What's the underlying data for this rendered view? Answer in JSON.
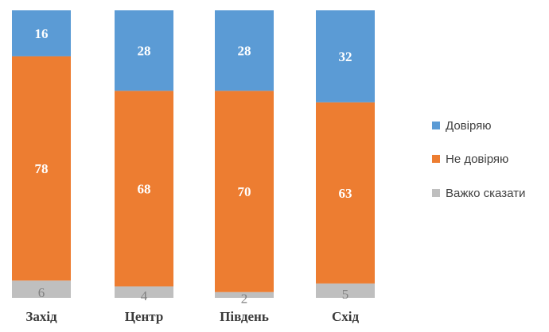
{
  "chart_data": {
    "type": "bar",
    "stacked": true,
    "title": "",
    "xlabel": "",
    "ylabel": "",
    "ylim": [
      0,
      100
    ],
    "grid": false,
    "legend_position": "right",
    "categories": [
      "Захід",
      "Центр",
      "Південь",
      "Схід"
    ],
    "series": [
      {
        "name": "Важко сказати",
        "values": [
          6,
          4,
          2,
          5
        ],
        "color": "#bfbfbf",
        "label_color": "#808080"
      },
      {
        "name": "Не довіряю",
        "values": [
          78,
          68,
          70,
          63
        ],
        "color": "#ed7d31",
        "label_color": "#ffffff"
      },
      {
        "name": "Довіряю",
        "values": [
          16,
          28,
          28,
          32
        ],
        "color": "#5b9bd5",
        "label_color": "#ffffff"
      }
    ],
    "legend_order": [
      "Довіряю",
      "Не довіряю",
      "Важко сказати"
    ]
  }
}
